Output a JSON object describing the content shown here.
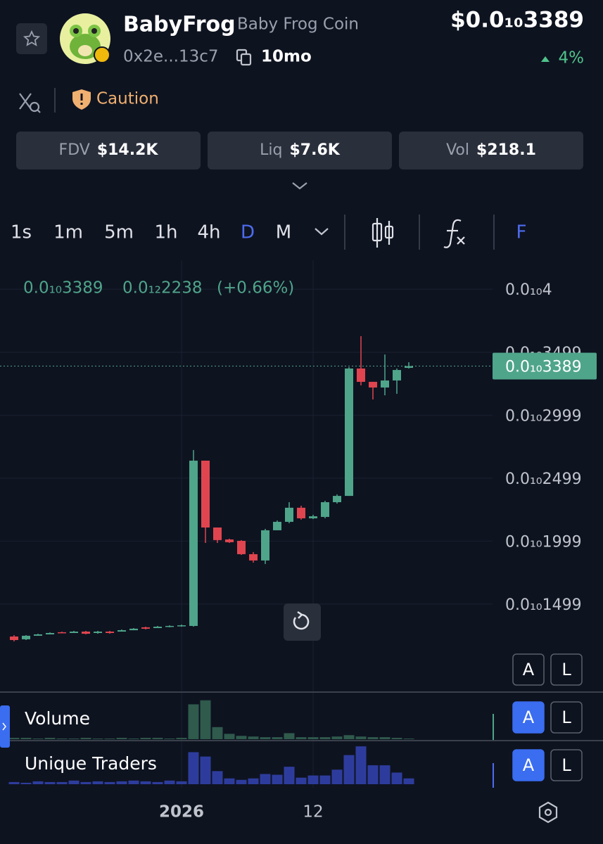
{
  "header": {
    "name": "BabyFrog",
    "full_name": "Baby Frog Coin",
    "address": "0x2e...13c7",
    "age": "10mo",
    "price": "$0.0₁₀3389",
    "price_change": "4%"
  },
  "risk": {
    "label": "Caution"
  },
  "stats": [
    {
      "label": "FDV",
      "value": "$14.2K"
    },
    {
      "label": "Liq",
      "value": "$7.6K"
    },
    {
      "label": "Vol",
      "value": "$218.1"
    }
  ],
  "timeframes": [
    "1s",
    "1m",
    "5m",
    "1h",
    "4h",
    "D",
    "M"
  ],
  "toolbar": {
    "label": "F"
  },
  "legend": {
    "price": "0.0₁₀3389",
    "change": "0.0₁₂2238",
    "change_percent": "(+0.66%)"
  },
  "last_price_label": "0.0₁₀3389",
  "scale_buttons": [
    "A",
    "L"
  ],
  "chart_data": [
    {
      "type": "candlestick",
      "categories": [
        null,
        null,
        null,
        null,
        null,
        null,
        null,
        null,
        null,
        null,
        null,
        null,
        null,
        null,
        "2026",
        null,
        null,
        null,
        null,
        null,
        null,
        null,
        null,
        null,
        null,
        "12",
        null,
        null,
        null,
        null,
        null,
        null,
        null,
        null
      ],
      "open": [
        1.241e-11,
        1.219e-11,
        1.247e-11,
        1.258e-11,
        1.275e-11,
        1.269e-11,
        1.28e-11,
        1.269e-11,
        1.28e-11,
        1.28e-11,
        1.291e-11,
        1.314e-11,
        1.308e-11,
        1.319e-11,
        1.325e-11,
        1.325e-11,
        2.638e-11,
        2.107e-11,
        2.012e-11,
        2.001e-11,
        1.895e-11,
        1.845e-11,
        2.085e-11,
        2.152e-11,
        2.264e-11,
        2.18e-11,
        2.191e-11,
        2.308e-11,
        2.358e-11,
        3.37e-11,
        3.264e-11,
        3.219e-11,
        3.275e-11,
        3.375e-11
      ],
      "high": [
        1.252e-11,
        1.252e-11,
        1.263e-11,
        1.274e-11,
        1.28e-11,
        1.286e-11,
        1.286e-11,
        1.286e-11,
        1.286e-11,
        1.297e-11,
        1.308e-11,
        1.319e-11,
        1.325e-11,
        1.33e-11,
        1.336e-11,
        2.722e-11,
        2.638e-11,
        2.107e-11,
        2.018e-11,
        2.007e-11,
        1.912e-11,
        2.096e-11,
        2.163e-11,
        2.308e-11,
        2.28e-11,
        2.208e-11,
        2.319e-11,
        2.37e-11,
        3.381e-11,
        3.627e-11,
        3.264e-11,
        3.481e-11,
        3.37e-11,
        3.42e-11
      ],
      "low": [
        1.202e-11,
        1.213e-11,
        1.247e-11,
        1.258e-11,
        1.269e-11,
        1.269e-11,
        1.258e-11,
        1.263e-11,
        1.263e-11,
        1.28e-11,
        1.291e-11,
        1.297e-11,
        1.308e-11,
        1.314e-11,
        1.319e-11,
        1.319e-11,
        1.984e-11,
        1.984e-11,
        1.984e-11,
        1.889e-11,
        1.828e-11,
        1.817e-11,
        2.085e-11,
        2.141e-11,
        2.169e-11,
        2.174e-11,
        2.18e-11,
        2.297e-11,
        2.358e-11,
        3.236e-11,
        3.124e-11,
        3.157e-11,
        3.169e-11,
        3.37e-11
      ],
      "close": [
        1.213e-11,
        1.247e-11,
        1.258e-11,
        1.269e-11,
        1.269e-11,
        1.28e-11,
        1.263e-11,
        1.28e-11,
        1.269e-11,
        1.291e-11,
        1.303e-11,
        1.303e-11,
        1.319e-11,
        1.325e-11,
        1.33e-11,
        2.638e-11,
        2.107e-11,
        2.007e-11,
        1.99e-11,
        1.895e-11,
        1.845e-11,
        2.085e-11,
        2.152e-11,
        2.264e-11,
        2.18e-11,
        2.196e-11,
        2.308e-11,
        2.358e-11,
        3.37e-11,
        3.264e-11,
        3.219e-11,
        3.275e-11,
        3.358e-11,
        3.389e-11
      ],
      "up_color": "#4fa58a",
      "down_color": "#e0454f",
      "ylim": [
        8.22e-12,
        4.23e-11
      ],
      "yticks": [
        {
          "value": 4e-11,
          "label": "0.0₁₀4"
        },
        {
          "value": 3.499e-11,
          "label": "0.0₁₀3499"
        },
        {
          "value": 2.999e-11,
          "label": "0.0₁₀2999"
        },
        {
          "value": 2.499e-11,
          "label": "0.0₁₀2499"
        },
        {
          "value": 1.999e-11,
          "label": "0.0₁₀1999"
        },
        {
          "value": 1.499e-11,
          "label": "0.0₁₀1499"
        }
      ],
      "grid": true
    },
    {
      "type": "bar",
      "title": "Volume",
      "color": "#2f5a4c",
      "values": [
        2,
        2,
        1,
        2,
        1,
        1,
        2,
        1,
        1,
        2,
        1,
        2,
        2,
        1,
        2,
        52,
        58,
        18,
        8,
        5,
        4,
        3,
        3,
        9,
        3,
        3,
        3,
        4,
        6,
        4,
        3,
        3,
        2,
        1
      ],
      "ylim": [
        0,
        65
      ]
    },
    {
      "type": "bar",
      "title": "Unique Traders",
      "color": "#2d3c9c",
      "values": [
        3,
        2,
        4,
        3,
        3,
        5,
        3,
        4,
        3,
        4,
        5,
        4,
        3,
        5,
        4,
        44,
        38,
        18,
        8,
        6,
        8,
        14,
        13,
        24,
        9,
        12,
        12,
        20,
        40,
        52,
        26,
        26,
        16,
        8
      ],
      "ylim": [
        0,
        56
      ]
    }
  ]
}
